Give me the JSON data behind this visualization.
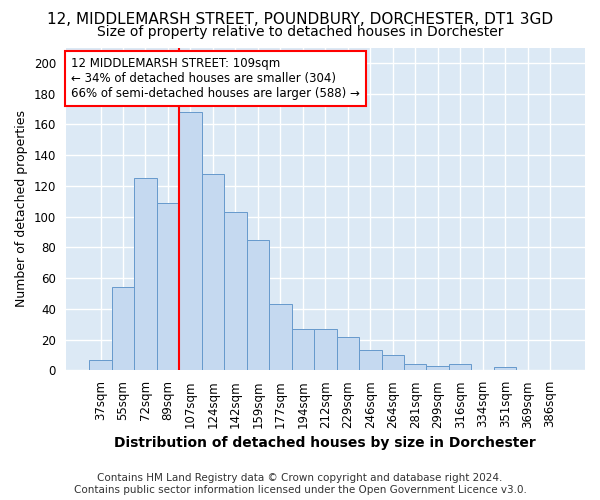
{
  "title": "12, MIDDLEMARSH STREET, POUNDBURY, DORCHESTER, DT1 3GD",
  "subtitle": "Size of property relative to detached houses in Dorchester",
  "xlabel": "Distribution of detached houses by size in Dorchester",
  "ylabel": "Number of detached properties",
  "bar_values": [
    7,
    54,
    125,
    109,
    168,
    128,
    103,
    85,
    43,
    27,
    27,
    22,
    13,
    10,
    4,
    3,
    4,
    0,
    2,
    0,
    0
  ],
  "bar_labels": [
    "37sqm",
    "55sqm",
    "72sqm",
    "89sqm",
    "107sqm",
    "124sqm",
    "142sqm",
    "159sqm",
    "177sqm",
    "194sqm",
    "212sqm",
    "229sqm",
    "246sqm",
    "264sqm",
    "281sqm",
    "299sqm",
    "316sqm",
    "334sqm",
    "351sqm",
    "369sqm",
    "386sqm"
  ],
  "bar_color": "#c5d9f0",
  "bar_edge_color": "#6699cc",
  "vline_color": "red",
  "vline_x": 4,
  "annotation_text": "12 MIDDLEMARSH STREET: 109sqm\n← 34% of detached houses are smaller (304)\n66% of semi-detached houses are larger (588) →",
  "annotation_box_color": "white",
  "annotation_box_edge": "red",
  "ylim": [
    0,
    210
  ],
  "yticks": [
    0,
    20,
    40,
    60,
    80,
    100,
    120,
    140,
    160,
    180,
    200
  ],
  "footer1": "Contains HM Land Registry data © Crown copyright and database right 2024.",
  "footer2": "Contains public sector information licensed under the Open Government Licence v3.0.",
  "background_color": "#ffffff",
  "plot_background": "#dce9f5",
  "grid_color": "white",
  "title_fontsize": 11,
  "subtitle_fontsize": 10,
  "xlabel_fontsize": 10,
  "ylabel_fontsize": 9,
  "tick_fontsize": 8.5,
  "footer_fontsize": 7.5,
  "annotation_fontsize": 8.5
}
